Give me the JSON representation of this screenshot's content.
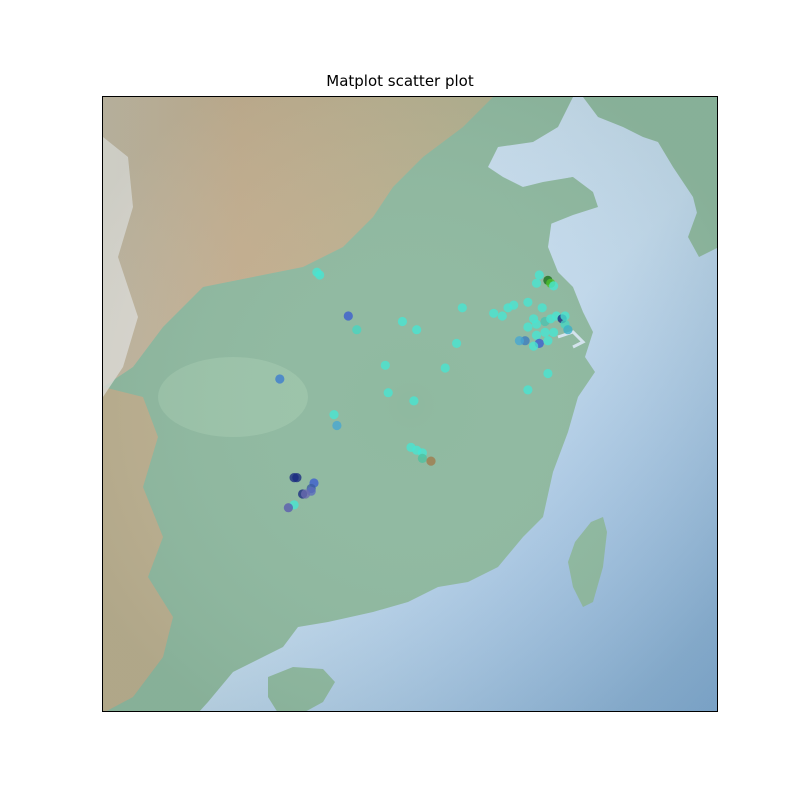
{
  "title": "Matplot scatter plot",
  "chart_data": {
    "type": "scatter",
    "title": "Matplot scatter plot",
    "basemap": "shaded relief (East China)",
    "axes_ticks": false,
    "points": [
      {
        "lon": 112.9,
        "lat": 34.6,
        "color": "#46e6d2"
      },
      {
        "lon": 113.0,
        "lat": 34.5,
        "color": "#46e6d2"
      },
      {
        "lon": 114.0,
        "lat": 33.0,
        "color": "#3b5ccf"
      },
      {
        "lon": 114.3,
        "lat": 32.5,
        "color": "#46d6c2"
      },
      {
        "lon": 115.9,
        "lat": 32.8,
        "color": "#46e6d2"
      },
      {
        "lon": 116.4,
        "lat": 32.5,
        "color": "#46e6d2"
      },
      {
        "lon": 118.0,
        "lat": 33.3,
        "color": "#46e6d2"
      },
      {
        "lon": 119.1,
        "lat": 33.1,
        "color": "#46e6d2"
      },
      {
        "lon": 119.4,
        "lat": 33.0,
        "color": "#46e6d2"
      },
      {
        "lon": 119.6,
        "lat": 33.3,
        "color": "#46e6d2"
      },
      {
        "lon": 119.8,
        "lat": 33.4,
        "color": "#46e6d2"
      },
      {
        "lon": 120.3,
        "lat": 33.5,
        "color": "#46e6d2"
      },
      {
        "lon": 120.6,
        "lat": 34.2,
        "color": "#46e6d2"
      },
      {
        "lon": 120.7,
        "lat": 34.5,
        "color": "#46e6d2"
      },
      {
        "lon": 121.0,
        "lat": 34.3,
        "color": "#1a6e1a"
      },
      {
        "lon": 121.1,
        "lat": 34.2,
        "color": "#4ec22a"
      },
      {
        "lon": 121.2,
        "lat": 34.1,
        "color": "#46e6d2"
      },
      {
        "lon": 120.8,
        "lat": 33.3,
        "color": "#46e6d2"
      },
      {
        "lon": 120.5,
        "lat": 32.9,
        "color": "#46e6d2"
      },
      {
        "lon": 120.3,
        "lat": 32.6,
        "color": "#46e6d2"
      },
      {
        "lon": 120.6,
        "lat": 32.7,
        "color": "#46e6d2"
      },
      {
        "lon": 120.9,
        "lat": 32.8,
        "color": "#4cc2b0"
      },
      {
        "lon": 121.1,
        "lat": 32.9,
        "color": "#46e6d2"
      },
      {
        "lon": 121.3,
        "lat": 33.0,
        "color": "#46e6d2"
      },
      {
        "lon": 121.5,
        "lat": 32.9,
        "color": "#1a2a80"
      },
      {
        "lon": 121.6,
        "lat": 33.0,
        "color": "#46e6d2"
      },
      {
        "lon": 121.6,
        "lat": 32.7,
        "color": "#46d6c2"
      },
      {
        "lon": 121.7,
        "lat": 32.5,
        "color": "#3ab0c8"
      },
      {
        "lon": 121.2,
        "lat": 32.4,
        "color": "#46e6d2"
      },
      {
        "lon": 120.9,
        "lat": 32.4,
        "color": "#46e6d2"
      },
      {
        "lon": 120.6,
        "lat": 32.3,
        "color": "#46e6d2"
      },
      {
        "lon": 120.2,
        "lat": 32.1,
        "color": "#3b7bbf"
      },
      {
        "lon": 120.0,
        "lat": 32.1,
        "color": "#46a6d2"
      },
      {
        "lon": 120.7,
        "lat": 32.0,
        "color": "#3b5ccf"
      },
      {
        "lon": 120.5,
        "lat": 31.9,
        "color": "#46e6d2"
      },
      {
        "lon": 121.0,
        "lat": 32.1,
        "color": "#46e6d2"
      },
      {
        "lon": 121.0,
        "lat": 30.9,
        "color": "#46e6d2"
      },
      {
        "lon": 120.3,
        "lat": 30.3,
        "color": "#46e6d2"
      },
      {
        "lon": 117.8,
        "lat": 32.0,
        "color": "#46e6d2"
      },
      {
        "lon": 115.3,
        "lat": 31.2,
        "color": "#46e6d2"
      },
      {
        "lon": 117.4,
        "lat": 31.1,
        "color": "#46e6d2"
      },
      {
        "lon": 111.6,
        "lat": 30.7,
        "color": "#3b7bcf"
      },
      {
        "lon": 115.4,
        "lat": 30.2,
        "color": "#46e6d2"
      },
      {
        "lon": 116.3,
        "lat": 29.9,
        "color": "#46e6d2"
      },
      {
        "lon": 113.5,
        "lat": 29.4,
        "color": "#46e6d2"
      },
      {
        "lon": 113.6,
        "lat": 29.0,
        "color": "#46a6d2"
      },
      {
        "lon": 116.2,
        "lat": 28.2,
        "color": "#46e6d2"
      },
      {
        "lon": 116.4,
        "lat": 28.1,
        "color": "#46e6d2"
      },
      {
        "lon": 116.6,
        "lat": 28.0,
        "color": "#46e6d2"
      },
      {
        "lon": 116.6,
        "lat": 27.8,
        "color": "#4ec2a0"
      },
      {
        "lon": 116.9,
        "lat": 27.7,
        "color": "#a07a4a"
      },
      {
        "lon": 112.1,
        "lat": 27.1,
        "color": "#1a2a80"
      },
      {
        "lon": 112.2,
        "lat": 27.1,
        "color": "#1a2a80"
      },
      {
        "lon": 112.8,
        "lat": 26.9,
        "color": "#3b5ccf"
      },
      {
        "lon": 112.7,
        "lat": 26.7,
        "color": "#3b5c9f"
      },
      {
        "lon": 112.7,
        "lat": 26.6,
        "color": "#5a6abf"
      },
      {
        "lon": 112.4,
        "lat": 26.5,
        "color": "#1a2a80"
      },
      {
        "lon": 112.5,
        "lat": 26.5,
        "color": "#6a6ab0"
      },
      {
        "lon": 112.1,
        "lat": 26.1,
        "color": "#46e6d2"
      },
      {
        "lon": 111.9,
        "lat": 26.0,
        "color": "#5a5ab0"
      }
    ]
  }
}
